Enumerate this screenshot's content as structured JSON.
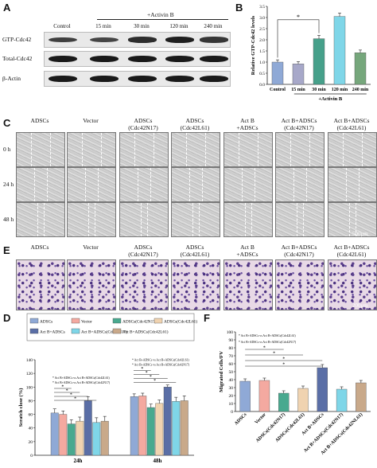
{
  "panel_letters": {
    "A": "A",
    "B": "B",
    "C": "C",
    "D": "D",
    "E": "E",
    "F": "F"
  },
  "blot": {
    "activin_header": "+Activin B",
    "columns": [
      "Control",
      "15 min",
      "30 min",
      "120 min",
      "240 min"
    ],
    "rows": [
      "GTP-Cdc42",
      "Total-Cdc42",
      "β-Actin"
    ]
  },
  "row_c_labels": [
    "0 h",
    "24 h",
    "48 h"
  ],
  "image_columns": [
    "ADSCs",
    "Vector",
    "ADSCs\n(Cdc42N17)",
    "ADSCs\n(Cdc42L61)",
    "Act B\n+ADSCs",
    "Act B+ADSCs\n(Cdc42N17)",
    "Act B+ADSCs\n(Cdc42L61)"
  ],
  "scale_c": "500μm",
  "scale_e": "200μm",
  "chart_data": [
    {
      "type": "bar",
      "panel": "B",
      "categories": [
        "Control",
        "15 min",
        "30 min",
        "120 min",
        "240 min"
      ],
      "values": [
        1.0,
        0.92,
        2.05,
        3.05,
        1.42
      ],
      "errors": [
        0.1,
        0.1,
        0.15,
        0.15,
        0.12
      ],
      "colors": [
        "#8fa9d6",
        "#a7a8c9",
        "#46a08a",
        "#7fd6e8",
        "#76a77c"
      ],
      "ylabel": "Relative GTP-Cdc42 levels",
      "ylim": [
        0,
        3.5
      ],
      "yticks": [
        "0.0",
        "0.5",
        "1.0",
        "1.5",
        "2.0",
        "2.5",
        "3.0",
        "3.5"
      ],
      "group_label": "+Activin B",
      "annotation": "*"
    },
    {
      "type": "bar",
      "panel": "D",
      "categories": [
        "24h",
        "48h"
      ],
      "ylabel": "Scratch close (%)",
      "ylim": [
        0,
        140
      ],
      "yticks": [
        "0",
        "20",
        "40",
        "60",
        "80",
        "100",
        "120",
        "140"
      ],
      "legend": [
        "ADSCs",
        "Vector",
        "ADSCs(Cdc42N17)",
        "ADSCs(Cdc42L61)",
        "Act B+ADSCs",
        "Act B+ADSCs(Cdc42N17)",
        "Act B+ADSCs(Cdc42L61)"
      ],
      "series": [
        {
          "name": "ADSCs",
          "values": [
            62,
            86
          ],
          "color": "#8fa9d6"
        },
        {
          "name": "Vector",
          "values": [
            60,
            87
          ],
          "color": "#f4a9a0"
        },
        {
          "name": "ADSCs(Cdc42N17)",
          "values": [
            46,
            70
          ],
          "color": "#49a98f"
        },
        {
          "name": "ADSCs(Cdc42L61)",
          "values": [
            50,
            76
          ],
          "color": "#f0d3b0"
        },
        {
          "name": "Act B+ADSCs",
          "values": [
            80,
            100
          ],
          "color": "#5a6ea6"
        },
        {
          "name": "Act B+ADSCs(Cdc42N17)",
          "values": [
            48,
            79
          ],
          "color": "#7fd6e8"
        },
        {
          "name": "Act B+ADSCs(Cdc42L61)",
          "values": [
            50,
            80
          ],
          "color": "#c9a98a"
        }
      ],
      "errors": [
        [
          6,
          4
        ],
        [
          5,
          4
        ],
        [
          6,
          5
        ],
        [
          6,
          5
        ],
        [
          6,
          3
        ],
        [
          7,
          6
        ],
        [
          7,
          7
        ]
      ],
      "annotations": [
        "* Act B+ADSCs vs Act B+ADSCs(Cdc42L61)",
        "* Act B+ADSCs vs Act B+ADSCs(Cdc42N17)",
        "* Act B+ADSCs vs Act B+ADSCs(Cdc42L61)",
        "* Act B+ADSCs vs Act B+ADSCs(Cdc42N17)"
      ]
    },
    {
      "type": "bar",
      "panel": "F",
      "categories": [
        "ADSCs",
        "Vector",
        "ADSCs(Cdc42N17)",
        "ADSCs(Cdc42L61)",
        "Act B+ADSCs",
        "Act B+ADSCs(Cdc42N17)",
        "Act B+ADSCs(Cdc42NL61)"
      ],
      "values": [
        38,
        39,
        23,
        29,
        55,
        28,
        36
      ],
      "errors": [
        3,
        3,
        3,
        3,
        4,
        3,
        3
      ],
      "colors": [
        "#8fa9d6",
        "#f4a9a0",
        "#49a98f",
        "#f0d3b0",
        "#5a6ea6",
        "#7fd6e8",
        "#c9a98a"
      ],
      "ylabel": "Migrated Cells/FV",
      "ylim": [
        0,
        100
      ],
      "yticks": [
        "0",
        "10",
        "20",
        "30",
        "40",
        "50",
        "60",
        "70",
        "80",
        "90",
        "100"
      ],
      "annotations": [
        "* Act B+ADSCs vs Act B+ADSCs(Cdc42L61)",
        "* Act B+ADSCs vs Act B+ADSCs(Cdc42N17)"
      ]
    }
  ]
}
